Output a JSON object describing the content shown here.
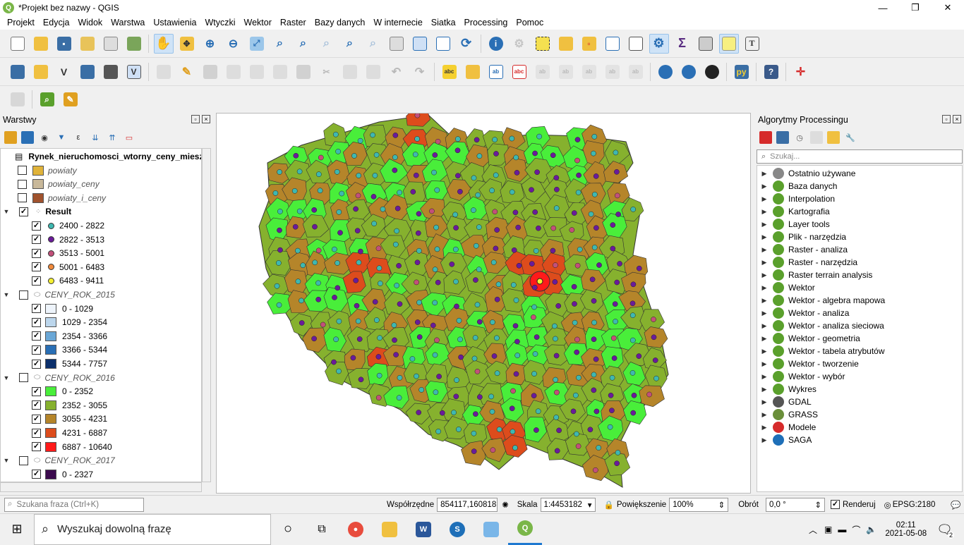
{
  "window": {
    "title": "*Projekt bez nazwy - QGIS",
    "minimize": "—",
    "maximize": "❐",
    "close": "✕"
  },
  "menu": [
    "Projekt",
    "Edycja",
    "Widok",
    "Warstwa",
    "Ustawienia",
    "Wtyczki",
    "Wektor",
    "Raster",
    "Bazy danych",
    "W internecie",
    "Siatka",
    "Processing",
    "Pomoc"
  ],
  "layers_panel": {
    "title": "Warstwy",
    "rows": [
      {
        "label": "Rynek_nieruchomosci_wtorny_ceny_miesz",
        "kind": "table",
        "bold": true
      },
      {
        "label": "powiaty",
        "kind": "poly",
        "color": "#e0b33a",
        "italic": true
      },
      {
        "label": "powiaty_ceny",
        "kind": "poly",
        "color": "#c8b89a",
        "italic": true
      },
      {
        "label": "powiaty_i_ceny",
        "kind": "poly",
        "color": "#a0522d",
        "italic": true
      },
      {
        "label": "Result",
        "kind": "group",
        "bold": true
      },
      {
        "label": "2400 - 2822",
        "kind": "point",
        "color": "#3fb8b0"
      },
      {
        "label": "2822 - 3513",
        "kind": "point",
        "color": "#6a1b9a"
      },
      {
        "label": "3513 - 5001",
        "kind": "point",
        "color": "#c2507a"
      },
      {
        "label": "5001 - 6483",
        "kind": "point",
        "color": "#f08a3c"
      },
      {
        "label": "6483 - 9411",
        "kind": "point",
        "color": "#f5f032"
      },
      {
        "label": "CENY_ROK_2015",
        "kind": "groupoff",
        "italic": true
      },
      {
        "label": "0 - 1029",
        "kind": "class",
        "color": "#eef4fb"
      },
      {
        "label": "1029 - 2354",
        "kind": "class",
        "color": "#bcd6ec"
      },
      {
        "label": "2354 - 3366",
        "kind": "class",
        "color": "#6aa7d6"
      },
      {
        "label": "3366 - 5344",
        "kind": "class",
        "color": "#2a6fb5"
      },
      {
        "label": "5344 - 7757",
        "kind": "class",
        "color": "#0b2f6b"
      },
      {
        "label": "CENY_ROK_2016",
        "kind": "groupoff",
        "italic": true
      },
      {
        "label": "0 - 2352",
        "kind": "class",
        "color": "#49ee3a"
      },
      {
        "label": "2352 - 3055",
        "kind": "class",
        "color": "#86b12e"
      },
      {
        "label": "3055 - 4231",
        "kind": "class",
        "color": "#b5852a"
      },
      {
        "label": "4231 - 6887",
        "kind": "class",
        "color": "#dd4c1c"
      },
      {
        "label": "6887 - 10640",
        "kind": "class",
        "color": "#ff1a1a"
      },
      {
        "label": "CENY_ROK_2017",
        "kind": "groupoff",
        "italic": true
      },
      {
        "label": "0 - 2327",
        "kind": "class",
        "color": "#3b0a4d"
      }
    ]
  },
  "processing_panel": {
    "title": "Algorytmy Processingu",
    "search_placeholder": "Szukaj...",
    "items": [
      {
        "label": "Ostatnio używane",
        "icon": "clock-icon",
        "color": "#888"
      },
      {
        "label": "Baza danych",
        "icon": "qgis-icon",
        "color": "#5aa02c"
      },
      {
        "label": "Interpolation",
        "icon": "qgis-icon",
        "color": "#5aa02c"
      },
      {
        "label": "Kartografia",
        "icon": "qgis-icon",
        "color": "#5aa02c"
      },
      {
        "label": "Layer tools",
        "icon": "qgis-icon",
        "color": "#5aa02c"
      },
      {
        "label": "Plik - narzędzia",
        "icon": "qgis-icon",
        "color": "#5aa02c"
      },
      {
        "label": "Raster - analiza",
        "icon": "qgis-icon",
        "color": "#5aa02c"
      },
      {
        "label": "Raster - narzędzia",
        "icon": "qgis-icon",
        "color": "#5aa02c"
      },
      {
        "label": "Raster terrain analysis",
        "icon": "qgis-icon",
        "color": "#5aa02c"
      },
      {
        "label": "Wektor",
        "icon": "qgis-icon",
        "color": "#5aa02c"
      },
      {
        "label": "Wektor - algebra mapowa",
        "icon": "qgis-icon",
        "color": "#5aa02c"
      },
      {
        "label": "Wektor - analiza",
        "icon": "qgis-icon",
        "color": "#5aa02c"
      },
      {
        "label": "Wektor - analiza sieciowa",
        "icon": "qgis-icon",
        "color": "#5aa02c"
      },
      {
        "label": "Wektor - geometria",
        "icon": "qgis-icon",
        "color": "#5aa02c"
      },
      {
        "label": "Wektor - tabela atrybutów",
        "icon": "qgis-icon",
        "color": "#5aa02c"
      },
      {
        "label": "Wektor - tworzenie",
        "icon": "qgis-icon",
        "color": "#5aa02c"
      },
      {
        "label": "Wektor - wybór",
        "icon": "qgis-icon",
        "color": "#5aa02c"
      },
      {
        "label": "Wykres",
        "icon": "qgis-icon",
        "color": "#5aa02c"
      },
      {
        "label": "GDAL",
        "icon": "gdal-icon",
        "color": "#555"
      },
      {
        "label": "GRASS",
        "icon": "grass-icon",
        "color": "#6a8f3a"
      },
      {
        "label": "Modele",
        "icon": "model-icon",
        "color": "#d62b2b"
      },
      {
        "label": "SAGA",
        "icon": "saga-icon",
        "color": "#1e6fb8"
      }
    ]
  },
  "statusbar": {
    "search_placeholder": "Szukana fraza (Ctrl+K)",
    "coord_label": "Współrzędne",
    "coord_value": "854117,160818",
    "scale_label": "Skala",
    "scale_value": "1:4453182",
    "zoom_label": "Powiększenie",
    "zoom_value": "100%",
    "rotation_label": "Obrót",
    "rotation_value": "0,0 °",
    "render_label": "Renderuj",
    "crs": "EPSG:2180"
  },
  "taskbar": {
    "search_placeholder": "Wyszukaj dowolną frazę",
    "time": "02:11",
    "date": "2021-05-08",
    "notifications": "2"
  },
  "colors": {
    "green1": "#49ee3a",
    "green2": "#86b12e",
    "brown": "#b5852a",
    "orange": "#dd4c1c",
    "red": "#ff1a1a"
  }
}
